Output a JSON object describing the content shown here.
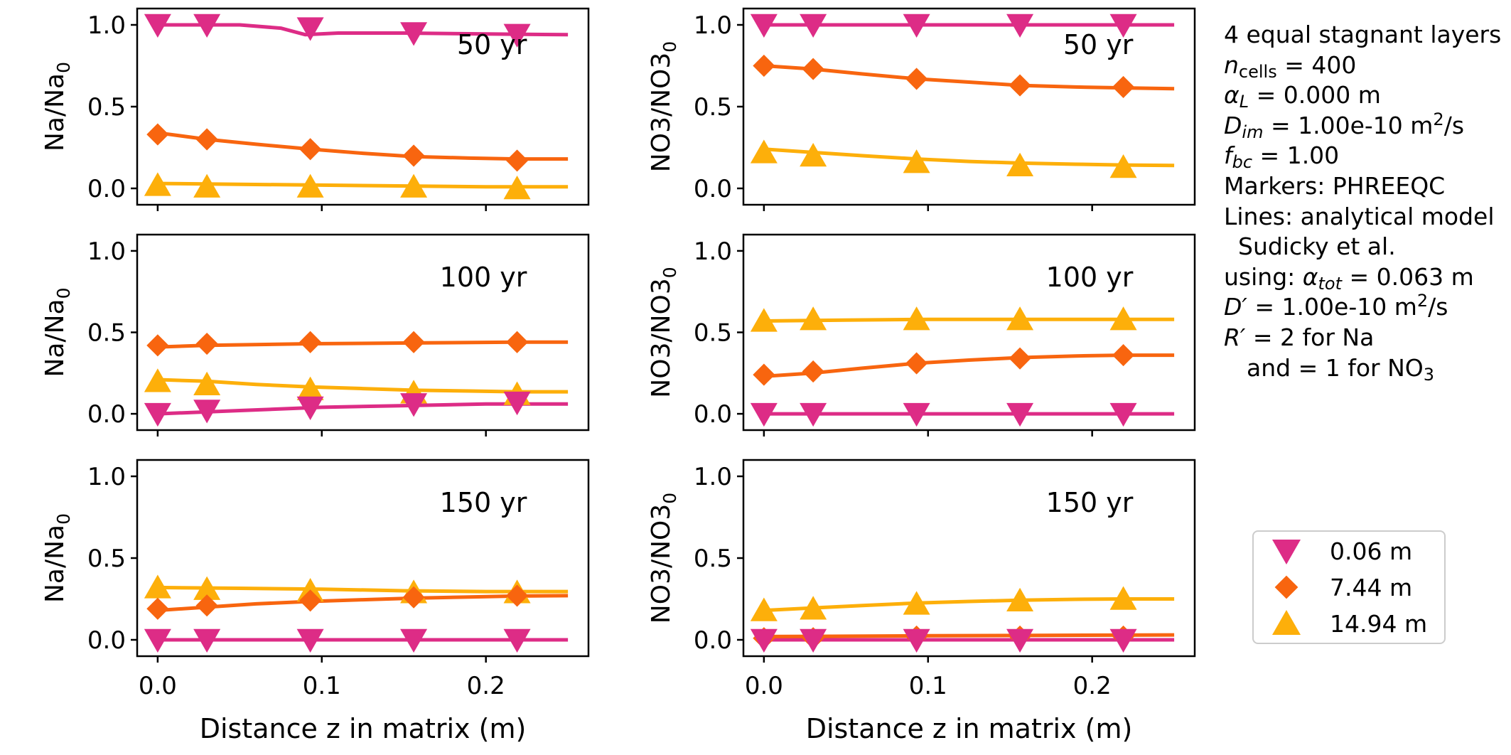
{
  "colors": {
    "small": "#dd2c86",
    "medium": "#f8650f",
    "large": "#fdaf0a",
    "axis": "#000000",
    "legend_border": "#cccccc"
  },
  "chart_data": [
    {
      "type": "line",
      "panel": "na-50",
      "annotation": "50 yr",
      "ylabel": "Na/Na",
      "ylabel_sub": "0",
      "xlabel": "",
      "ylim": [
        -0.1,
        1.1
      ],
      "xlim": [
        -0.0125,
        0.2625
      ],
      "yticks": [
        "0.0",
        "0.5",
        "1.0"
      ],
      "xticks": [],
      "series": [
        {
          "name": "0.06 m",
          "marker": "triangle-down",
          "points_x": [
            0.0,
            0.03,
            0.093,
            0.156,
            0.219
          ],
          "points_y": [
            1.0,
            1.0,
            0.98,
            0.95,
            0.94
          ],
          "line_x": [
            0.0,
            0.05,
            0.075,
            0.09,
            0.11,
            0.15,
            0.2,
            0.25
          ],
          "line_y": [
            1.0,
            1.0,
            0.98,
            0.94,
            0.95,
            0.95,
            0.945,
            0.94
          ]
        },
        {
          "name": "7.44 m",
          "marker": "diamond",
          "points_x": [
            0.0,
            0.03,
            0.093,
            0.156,
            0.219
          ],
          "points_y": [
            0.33,
            0.3,
            0.24,
            0.2,
            0.17
          ],
          "line_x": [
            0.0,
            0.03,
            0.06,
            0.093,
            0.125,
            0.156,
            0.19,
            0.219,
            0.25
          ],
          "line_y": [
            0.34,
            0.3,
            0.27,
            0.24,
            0.215,
            0.195,
            0.185,
            0.18,
            0.18
          ]
        },
        {
          "name": "14.94 m",
          "marker": "triangle-up",
          "points_x": [
            0.0,
            0.03,
            0.093,
            0.156,
            0.219
          ],
          "points_y": [
            0.02,
            0.01,
            0.01,
            0.01,
            0.0
          ],
          "line_x": [
            0.0,
            0.1,
            0.2,
            0.25
          ],
          "line_y": [
            0.03,
            0.02,
            0.01,
            0.01
          ]
        }
      ]
    },
    {
      "type": "line",
      "panel": "no3-50",
      "annotation": "50 yr",
      "ylabel": "NO3/NO3",
      "ylabel_sub": "0",
      "xlabel": "",
      "ylim": [
        -0.1,
        1.1
      ],
      "xlim": [
        -0.0125,
        0.2625
      ],
      "yticks": [
        "0.0",
        "0.5",
        "1.0"
      ],
      "xticks": [],
      "series": [
        {
          "name": "0.06 m",
          "marker": "triangle-down",
          "points_x": [
            0.0,
            0.03,
            0.093,
            0.156,
            0.219
          ],
          "points_y": [
            1.0,
            1.0,
            1.0,
            1.0,
            1.0
          ],
          "line_x": [
            0.0,
            0.25
          ],
          "line_y": [
            1.0,
            1.0
          ]
        },
        {
          "name": "7.44 m",
          "marker": "diamond",
          "points_x": [
            0.0,
            0.03,
            0.093,
            0.156,
            0.219
          ],
          "points_y": [
            0.75,
            0.73,
            0.67,
            0.63,
            0.62
          ],
          "line_x": [
            0.0,
            0.03,
            0.06,
            0.093,
            0.125,
            0.156,
            0.19,
            0.219,
            0.25
          ],
          "line_y": [
            0.75,
            0.73,
            0.7,
            0.67,
            0.65,
            0.63,
            0.62,
            0.615,
            0.61
          ]
        },
        {
          "name": "14.94 m",
          "marker": "triangle-up",
          "points_x": [
            0.0,
            0.03,
            0.093,
            0.156,
            0.219
          ],
          "points_y": [
            0.22,
            0.2,
            0.16,
            0.14,
            0.13
          ],
          "line_x": [
            0.0,
            0.03,
            0.06,
            0.093,
            0.125,
            0.156,
            0.19,
            0.219,
            0.25
          ],
          "line_y": [
            0.24,
            0.22,
            0.2,
            0.18,
            0.165,
            0.155,
            0.148,
            0.143,
            0.14
          ]
        }
      ]
    },
    {
      "type": "line",
      "panel": "na-100",
      "annotation": "100 yr",
      "ylabel": "Na/Na",
      "ylabel_sub": "0",
      "xlabel": "",
      "ylim": [
        -0.1,
        1.1
      ],
      "xlim": [
        -0.0125,
        0.2625
      ],
      "yticks": [
        "0.0",
        "0.5",
        "1.0"
      ],
      "xticks": [],
      "series": [
        {
          "name": "0.06 m",
          "marker": "triangle-down",
          "points_x": [
            0.0,
            0.03,
            0.093,
            0.156,
            0.219
          ],
          "points_y": [
            0.0,
            0.02,
            0.04,
            0.06,
            0.07
          ],
          "line_x": [
            0.0,
            0.05,
            0.1,
            0.15,
            0.2,
            0.25
          ],
          "line_y": [
            0.0,
            0.02,
            0.04,
            0.05,
            0.06,
            0.06
          ]
        },
        {
          "name": "7.44 m",
          "marker": "diamond",
          "points_x": [
            0.0,
            0.03,
            0.093,
            0.156,
            0.219
          ],
          "points_y": [
            0.42,
            0.43,
            0.44,
            0.44,
            0.44
          ],
          "line_x": [
            0.0,
            0.03,
            0.093,
            0.156,
            0.219,
            0.25
          ],
          "line_y": [
            0.41,
            0.42,
            0.43,
            0.435,
            0.44,
            0.44
          ]
        },
        {
          "name": "14.94 m",
          "marker": "triangle-up",
          "points_x": [
            0.0,
            0.03,
            0.093,
            0.156,
            0.219
          ],
          "points_y": [
            0.2,
            0.18,
            0.15,
            0.13,
            0.12
          ],
          "line_x": [
            0.0,
            0.03,
            0.06,
            0.093,
            0.125,
            0.156,
            0.19,
            0.219,
            0.25
          ],
          "line_y": [
            0.21,
            0.2,
            0.18,
            0.165,
            0.155,
            0.145,
            0.14,
            0.135,
            0.135
          ]
        }
      ]
    },
    {
      "type": "line",
      "panel": "no3-100",
      "annotation": "100 yr",
      "ylabel": "NO3/NO3",
      "ylabel_sub": "0",
      "xlabel": "",
      "ylim": [
        -0.1,
        1.1
      ],
      "xlim": [
        -0.0125,
        0.2625
      ],
      "yticks": [
        "0.0",
        "0.5",
        "1.0"
      ],
      "xticks": [],
      "series": [
        {
          "name": "0.06 m",
          "marker": "triangle-down",
          "points_x": [
            0.0,
            0.03,
            0.093,
            0.156,
            0.219
          ],
          "points_y": [
            0.0,
            0.0,
            0.0,
            0.0,
            0.0
          ],
          "line_x": [
            0.0,
            0.25
          ],
          "line_y": [
            0.0,
            0.0
          ]
        },
        {
          "name": "7.44 m",
          "marker": "diamond",
          "points_x": [
            0.0,
            0.03,
            0.093,
            0.156,
            0.219
          ],
          "points_y": [
            0.24,
            0.26,
            0.31,
            0.34,
            0.36
          ],
          "line_x": [
            0.0,
            0.03,
            0.06,
            0.093,
            0.125,
            0.156,
            0.19,
            0.219,
            0.25
          ],
          "line_y": [
            0.23,
            0.25,
            0.28,
            0.31,
            0.33,
            0.345,
            0.355,
            0.36,
            0.36
          ]
        },
        {
          "name": "14.94 m",
          "marker": "triangle-up",
          "points_x": [
            0.0,
            0.03,
            0.093,
            0.156,
            0.219
          ],
          "points_y": [
            0.57,
            0.58,
            0.58,
            0.58,
            0.58
          ],
          "line_x": [
            0.0,
            0.05,
            0.1,
            0.25
          ],
          "line_y": [
            0.57,
            0.575,
            0.58,
            0.58
          ]
        }
      ]
    },
    {
      "type": "line",
      "panel": "na-150",
      "annotation": "150 yr",
      "ylabel": "Na/Na",
      "ylabel_sub": "0",
      "xlabel": "Distance z in matrix (m)",
      "ylim": [
        -0.1,
        1.1
      ],
      "xlim": [
        -0.0125,
        0.2625
      ],
      "yticks": [
        "0.0",
        "0.5",
        "1.0"
      ],
      "xticks": [
        "0.0",
        "0.1",
        "0.2"
      ],
      "xtick_values": [
        0.0,
        0.1,
        0.2
      ],
      "series": [
        {
          "name": "0.06 m",
          "marker": "triangle-down",
          "points_x": [
            0.0,
            0.03,
            0.093,
            0.156,
            0.219
          ],
          "points_y": [
            0.0,
            0.0,
            0.0,
            0.0,
            0.0
          ],
          "line_x": [
            0.0,
            0.25
          ],
          "line_y": [
            0.0,
            0.0
          ]
        },
        {
          "name": "7.44 m",
          "marker": "diamond",
          "points_x": [
            0.0,
            0.03,
            0.093,
            0.156,
            0.219
          ],
          "points_y": [
            0.19,
            0.21,
            0.24,
            0.26,
            0.27
          ],
          "line_x": [
            0.0,
            0.03,
            0.06,
            0.093,
            0.125,
            0.156,
            0.19,
            0.219,
            0.25
          ],
          "line_y": [
            0.18,
            0.2,
            0.22,
            0.235,
            0.245,
            0.255,
            0.262,
            0.268,
            0.27
          ]
        },
        {
          "name": "14.94 m",
          "marker": "triangle-up",
          "points_x": [
            0.0,
            0.03,
            0.093,
            0.156,
            0.219
          ],
          "points_y": [
            0.32,
            0.31,
            0.3,
            0.29,
            0.29
          ],
          "line_x": [
            0.0,
            0.05,
            0.1,
            0.15,
            0.2,
            0.25
          ],
          "line_y": [
            0.32,
            0.315,
            0.31,
            0.3,
            0.295,
            0.295
          ]
        }
      ]
    },
    {
      "type": "line",
      "panel": "no3-150",
      "annotation": "150 yr",
      "ylabel": "NO3/NO3",
      "ylabel_sub": "0",
      "xlabel": "Distance z in matrix (m)",
      "ylim": [
        -0.1,
        1.1
      ],
      "xlim": [
        -0.0125,
        0.2625
      ],
      "yticks": [
        "0.0",
        "0.5",
        "1.0"
      ],
      "xticks": [
        "0.0",
        "0.1",
        "0.2"
      ],
      "xtick_values": [
        0.0,
        0.1,
        0.2
      ],
      "series": [
        {
          "name": "0.06 m",
          "marker": "triangle-down",
          "points_x": [
            0.0,
            0.03,
            0.093,
            0.156,
            0.219
          ],
          "points_y": [
            0.0,
            0.0,
            0.0,
            0.0,
            0.0
          ],
          "line_x": [
            0.0,
            0.25
          ],
          "line_y": [
            0.0,
            0.0
          ]
        },
        {
          "name": "7.44 m",
          "marker": "diamond",
          "points_x": [
            0.0,
            0.03,
            0.093,
            0.156,
            0.219
          ],
          "points_y": [
            0.01,
            0.01,
            0.02,
            0.02,
            0.02
          ],
          "line_x": [
            0.0,
            0.1,
            0.25
          ],
          "line_y": [
            0.02,
            0.025,
            0.03
          ]
        },
        {
          "name": "14.94 m",
          "marker": "triangle-up",
          "points_x": [
            0.0,
            0.03,
            0.093,
            0.156,
            0.219
          ],
          "points_y": [
            0.18,
            0.19,
            0.22,
            0.24,
            0.25
          ],
          "line_x": [
            0.0,
            0.03,
            0.06,
            0.093,
            0.125,
            0.156,
            0.19,
            0.219,
            0.25
          ],
          "line_y": [
            0.18,
            0.195,
            0.21,
            0.225,
            0.235,
            0.242,
            0.248,
            0.25,
            0.25
          ]
        }
      ]
    }
  ],
  "legend": {
    "items": [
      {
        "label": "0.06 m",
        "marker": "triangle-down",
        "color_key": "small"
      },
      {
        "label": "7.44 m",
        "marker": "diamond",
        "color_key": "medium"
      },
      {
        "label": "14.94 m",
        "marker": "triangle-up",
        "color_key": "large"
      }
    ]
  },
  "info": {
    "layers": "4 equal stagnant layers",
    "ncells_sym": "n",
    "ncells_sub": "cells",
    "ncells_val": " = 400",
    "alphaL_sym": "α",
    "alphaL_sub": "L",
    "alphaL_val": " = 0.000 m",
    "dim_sym": "D",
    "dim_sub": "im",
    "dim_val": " = 1.00e-10 m",
    "dim_sup": "2",
    "dim_unit_tail": "/s",
    "fbc_sym": "f",
    "fbc_sub": "bc",
    "fbc_val": " = 1.00",
    "markers": "Markers: PHREEQC",
    "lines": "Lines: analytical model",
    "sudicky": "Sudicky et al.",
    "using_prefix": "using: ",
    "atot_sym": "α",
    "atot_sub": "tot",
    "atot_val": " = 0.063 m",
    "dprime_sym": "D′",
    "dprime_val": " = 1.00e-10 m",
    "dprime_sup": "2",
    "dprime_unit_tail": "/s",
    "rprime_sym": "R′",
    "rprime_val": " = 2 for Na",
    "and_text": "and = 1 for NO",
    "and_sub": "3"
  }
}
